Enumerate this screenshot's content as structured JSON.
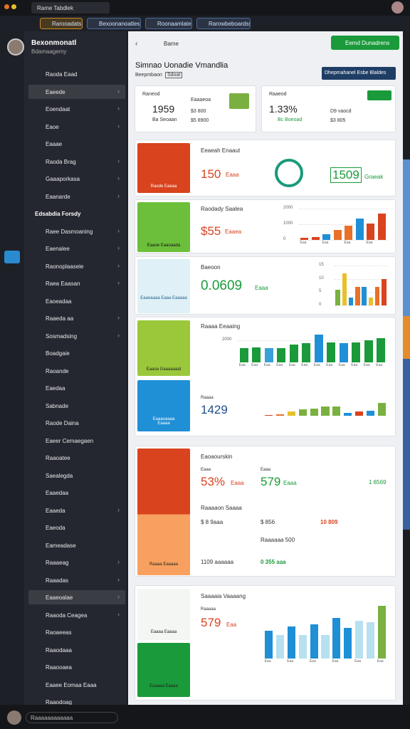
{
  "browser": {
    "tab": "Rame Tabdlek",
    "tabs": [
      "Rarooadats",
      "Bexoonanoatles",
      "Roonaamlates",
      "Rarowbeboardss"
    ]
  },
  "sidebar": {
    "user": "Bexonmonatl",
    "role": "Bdamaagemy",
    "items": [
      {
        "label": "Raoda Eaad",
        "color": "#e8702a"
      },
      {
        "label": "Eaeede",
        "color": "#e8a02a",
        "arrow": true,
        "active": true
      },
      {
        "label": "Eoendaat",
        "color": "#d9902a",
        "arrow": true
      },
      {
        "label": "Eaoe",
        "color": "#d9431e",
        "arrow": true
      },
      {
        "label": "Eaaae",
        "color": "#3a88d8"
      },
      {
        "label": "Raoda Brag",
        "color": "#3a88d8",
        "arrow": true
      },
      {
        "label": "Gaaaporkasa",
        "color": "#3aa070",
        "arrow": true
      },
      {
        "label": "Eaanarde",
        "color": "#3a88d8",
        "arrow": true
      },
      {
        "label": "Edsabdia Forsdy",
        "heading": true
      },
      {
        "label": "Raee Dasmoaning",
        "color": "#3a88d8",
        "arrow": true
      },
      {
        "label": "Eaenalee",
        "color": "#e8a02a",
        "arrow": true
      },
      {
        "label": "Raonoplaaseie",
        "color": "#3a88d8",
        "arrow": true
      },
      {
        "label": "Raea Eaasan",
        "color": "#3a88d8",
        "arrow": true
      },
      {
        "label": "Eaoeadaa",
        "color": "#3a88d8"
      },
      {
        "label": "Raaeda aa",
        "color": "#3a88d8",
        "arrow": true
      },
      {
        "label": "Sosmadsing",
        "color": "#3a88d8",
        "arrow": true
      },
      {
        "label": "Boadgaie",
        "color": "#d9431e"
      },
      {
        "label": "Raoande",
        "color": "#3aa0c0"
      },
      {
        "label": "Eaedaa",
        "color": "#999"
      },
      {
        "label": "Sabnade",
        "color": "#3a88d8"
      },
      {
        "label": "Raode Daina",
        "color": "#aaa"
      },
      {
        "label": "Eaeer Cemaegaen",
        "color": "#3a88d8"
      },
      {
        "label": "Raaoatee",
        "color": "#7ab040"
      },
      {
        "label": "Saealegda",
        "color": "#3a88d8"
      },
      {
        "label": "Eaaedaa",
        "color": "#3a88d8"
      },
      {
        "label": "Eaaeda",
        "color": "#999",
        "arrow": true
      },
      {
        "label": "Eaeoda",
        "color": "#3a88d8"
      },
      {
        "label": "Eameadase",
        "color": "#d9431e"
      },
      {
        "label": "Raaaeag",
        "color": "#3a88d8",
        "arrow": true
      },
      {
        "label": "Raaadas",
        "color": "#3a88d8",
        "arrow": true
      },
      {
        "label": "Eaaeoalae",
        "color": "#e8a02a",
        "arrow": true,
        "active": true
      },
      {
        "label": "Raaoda Ceagea",
        "color": "#3a88d8",
        "arrow": true
      },
      {
        "label": "Raoaeeas",
        "color": "#d9431e"
      },
      {
        "label": "Raaodaaa",
        "color": "#3a88d8"
      },
      {
        "label": "Raaooaea",
        "color": "#3a88d8"
      },
      {
        "label": "Eaaee Eomaa Eaaa",
        "color": "#1a9a3a"
      },
      {
        "label": "Raaodoag",
        "color": "#999"
      }
    ]
  },
  "main": {
    "crumb": "Bame",
    "action": "Eemd Dunadrens",
    "title": "Simnao Uonadie Vmandlia",
    "subtitle": "Beepmbaon",
    "chip": "Sdoat",
    "button": "Dhepmahanel Esbe Blaldes",
    "stats": [
      {
        "label": "Raneod",
        "value": "1959",
        "note": "Ba Seoaan",
        "lines": [
          "Eaaaeoa",
          "$3 800",
          "$5 8900"
        ]
      },
      {
        "label": "Raaeod",
        "value": "1.33%",
        "note": "Bc Boeoad",
        "lines": [
          "D9 vaocd",
          "$3 805"
        ]
      }
    ],
    "a": {
      "title": "Eeaeah Enaaut",
      "value": "150",
      "unit": "Eaaa",
      "tile": "Raode Eaeaa",
      "goal": "1509",
      "goal_unit": "Graeak"
    },
    "b": {
      "title": "Raodady Saalea",
      "value": "$55",
      "unit": "Eaaea",
      "tile": "Eaaoe Eaaoaada",
      "chart": {
        "ylim": [
          0,
          2000
        ],
        "yticks": [
          0,
          1000,
          2000
        ],
        "values": [
          150,
          200,
          350,
          650,
          900,
          1350,
          1050,
          1700
        ],
        "colors": [
          "#d9431e",
          "#d9431e",
          "#1f8fd6",
          "#e8702a",
          "#e8702a",
          "#1f8fd6",
          "#d9431e",
          "#d9431e"
        ],
        "categories": [
          "Eaa",
          null,
          "Eaa",
          null,
          "Eaa",
          null,
          "Eaa",
          null
        ]
      }
    },
    "c": {
      "title": "Baeoon",
      "value": "0.0609",
      "unit": "Eaaa",
      "tile": "Eaaoaaaa Eaaa Eaaaaa",
      "chart": {
        "ylim": [
          0,
          15
        ],
        "yticks": [
          0,
          5,
          10,
          15
        ],
        "values": [
          6,
          12,
          3,
          7,
          7,
          3,
          7,
          10
        ],
        "colors": [
          "#7ab040",
          "#e8c02a",
          "#1f8fd6",
          "#e8702a",
          "#1f8fd6",
          "#e8c02a",
          "#e8702a",
          "#d9431e"
        ]
      }
    },
    "d": {
      "title": "Raaaa Eeaaing",
      "tile": "Eaaoa Gaaaaaaat",
      "chart": {
        "ylim": [
          0,
          3000
        ],
        "yticks": [
          2000
        ],
        "values": [
          1300,
          1350,
          1250,
          1300,
          1600,
          1700,
          2500,
          1800,
          1700,
          1800,
          2000,
          2200
        ],
        "colors": [
          "#1a9a3a",
          "#1a9a3a",
          "#3aa0d8",
          "#1a9a3a",
          "#1a9a3a",
          "#1a9a3a",
          "#1f8fd6",
          "#1a9a3a",
          "#1f8fd6",
          "#1a9a3a",
          "#1a9a3a",
          "#1a9a3a"
        ],
        "categories": [
          "Eaa",
          "Eaa",
          "Eaa",
          "Eaa",
          "Eaa",
          "Eaa",
          "Eaa",
          "Eaa",
          "Eaa",
          "Eaa",
          "Eaa",
          "Eaa"
        ]
      }
    },
    "e": {
      "label": "Raaaa",
      "value": "1429",
      "tile": "Eaaaoaaaa",
      "tile2": "Eaaaa",
      "chart": {
        "ylim": [
          0,
          6
        ],
        "values": [
          0.3,
          0.6,
          1.5,
          2.2,
          2.5,
          3.2,
          3.2,
          1.1,
          1.5,
          1.8,
          4.6
        ],
        "colors": [
          "#d9431e",
          "#e8702a",
          "#e8c02a",
          "#7ab040",
          "#7ab040",
          "#7ab040",
          "#7ab040",
          "#1f8fd6",
          "#d9431e",
          "#1f8fd6",
          "#7ab040"
        ]
      }
    },
    "f": {
      "title": "Eaoaourskin",
      "l1": "Eaaa",
      "v1": "53%",
      "u1": "Eaaa",
      "l2": "Eaaa",
      "v2": "579",
      "u2": "Eaaa",
      "v3": "1 8569",
      "sub": "Raaaaon Saaaa",
      "r1": "$ 8 9aaa",
      "r2": "$ 856",
      "r3": "10 809",
      "r4": "Raaaaaa 500",
      "r5": "1109 aaaaaa",
      "r6": "0 355 aaa",
      "tile": "Raaaa Eaaaaa"
    },
    "g": {
      "title": "Saaaaia Vaaaang",
      "label": "Raaaaa",
      "value": "579",
      "unit": "Eaa",
      "tile": "Eaaaa Eaaaa",
      "tile2": "Eaaaaa Eaaaa",
      "chart": {
        "ylim": [
          0,
          100
        ],
        "values": [
          48,
          40,
          55,
          40,
          58,
          40,
          70,
          52,
          65,
          62,
          90
        ],
        "colors": [
          "#1f8fd6",
          "#b7e0f0",
          "#1f8fd6",
          "#b7e0f0",
          "#1f8fd6",
          "#b7e0f0",
          "#1f8fd6",
          "#1f8fd6",
          "#b7e0f0",
          "#b7e0f0",
          "#7ab040"
        ],
        "categories": [
          "Eaa",
          null,
          "Eaa",
          null,
          "Eaa",
          null,
          "Eaa",
          null,
          "Eaa",
          null,
          "Eaa"
        ]
      }
    }
  },
  "footer": {
    "status": "Raaaaaaaaaaaa"
  }
}
